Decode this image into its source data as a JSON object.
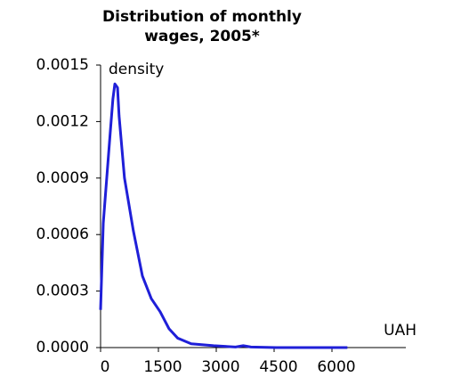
{
  "chart_data": {
    "type": "line",
    "title": "Distribution of monthly wages, 2005*",
    "ylabel": "density",
    "xlabel": "UAH",
    "series": [
      {
        "color": "#1f1fd8",
        "x": [
          0,
          70,
          160,
          250,
          320,
          370,
          440,
          480,
          620,
          850,
          1085,
          1315,
          1545,
          1775,
          2000,
          2350,
          2930,
          3500,
          3700,
          3900,
          4550,
          6400
        ],
        "values": [
          0.0002,
          0.00066,
          0.0009,
          0.00114,
          0.00132,
          0.0014,
          0.00138,
          0.00123,
          0.0009,
          0.00062,
          0.00038,
          0.00026,
          0.00019,
          0.0001,
          5e-05,
          2e-05,
          1e-05,
          3e-06,
          1e-05,
          3e-06,
          0,
          0
        ]
      }
    ],
    "xlim": [
      0,
      7500
    ],
    "xticks": [
      0,
      1500,
      3000,
      4500,
      6000
    ],
    "ylim": [
      0,
      0.0015
    ],
    "yticks": [
      {
        "value": 0,
        "label": "0.0000"
      },
      {
        "value": 0.0003,
        "label": "0.0003"
      },
      {
        "value": 0.0006,
        "label": "0.0006"
      },
      {
        "value": 0.0009,
        "label": "0.0009"
      },
      {
        "value": 0.0012,
        "label": "0.0012"
      },
      {
        "value": 0.0015,
        "label": "0.0015"
      }
    ]
  }
}
